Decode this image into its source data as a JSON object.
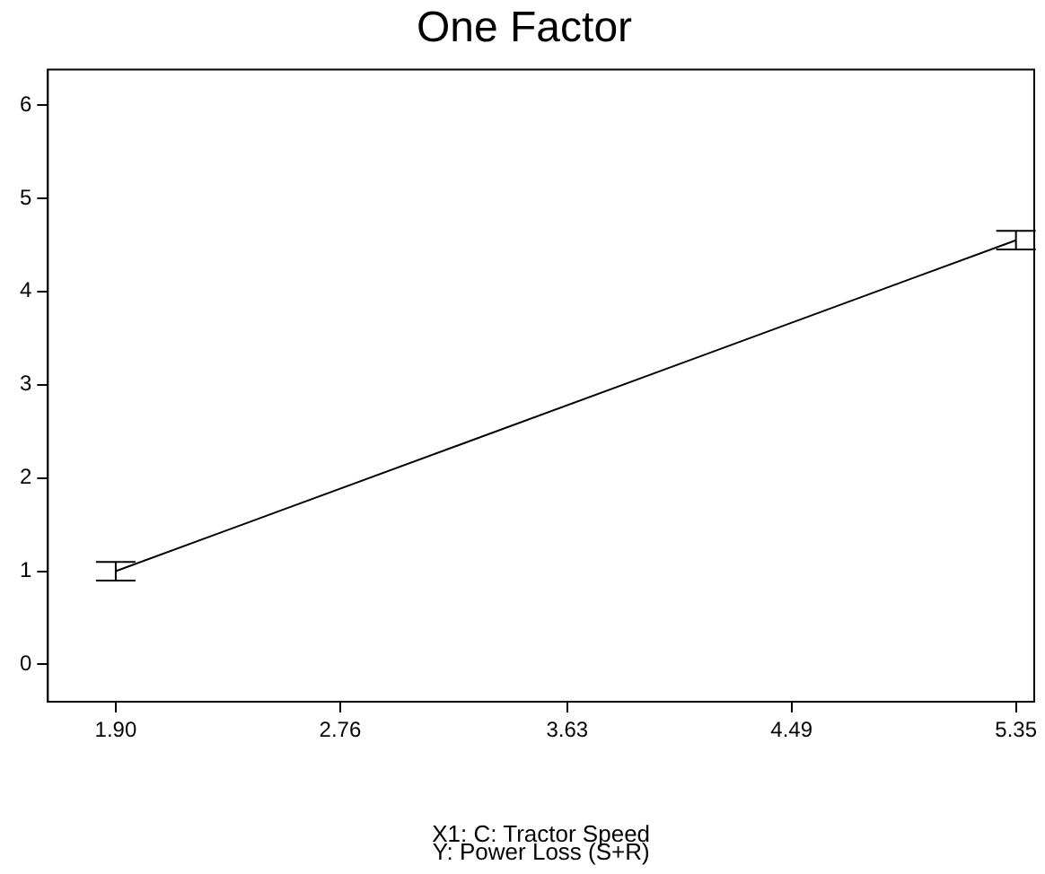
{
  "chart_data": {
    "type": "line",
    "title": "One Factor",
    "xlabel": "X1: C: Tractor Speed",
    "annotations": [
      "Y: Power Loss (S+R)"
    ],
    "x": [
      1.9,
      5.35
    ],
    "series": [
      {
        "color": "#000000",
        "values": [
          1.0,
          4.55
        ],
        "errors": [
          0.1,
          0.1
        ]
      }
    ],
    "xlim": [
      1.64,
      5.42
    ],
    "xticks": [
      {
        "value": 1.9,
        "label": "1.90"
      },
      {
        "value": 2.76,
        "label": "2.76"
      },
      {
        "value": 3.63,
        "label": "3.63"
      },
      {
        "value": 4.49,
        "label": "4.49"
      },
      {
        "value": 5.35,
        "label": "5.35"
      }
    ],
    "ylim": [
      -0.4,
      6.38
    ],
    "yticks": [
      0,
      1,
      2,
      3,
      4,
      5,
      6
    ],
    "grid": false,
    "legend": false,
    "marker": "none",
    "line_style": "solid"
  }
}
